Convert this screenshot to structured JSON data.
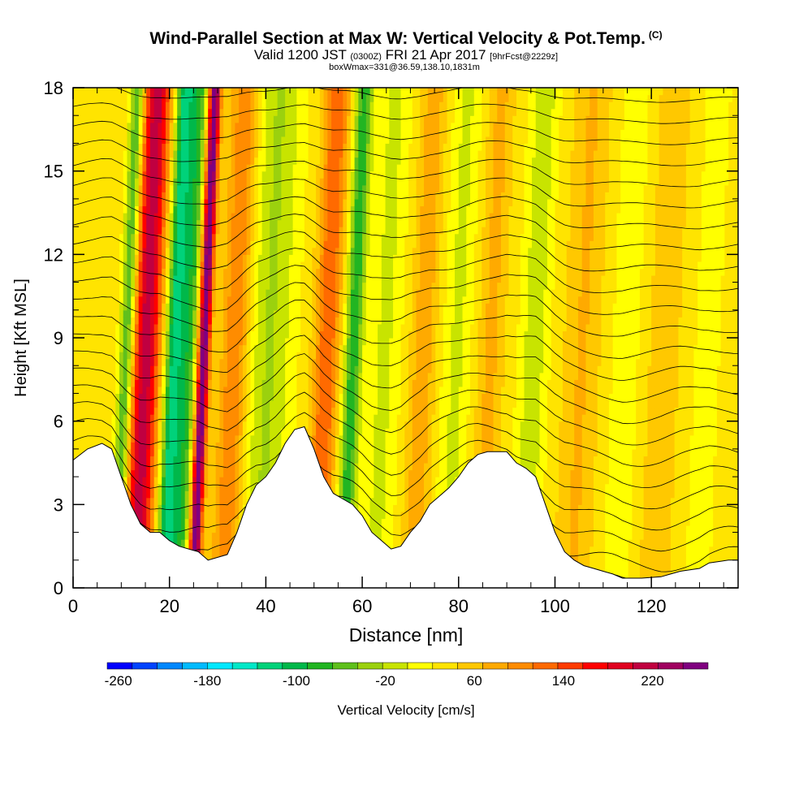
{
  "title": {
    "main": "Wind-Parallel Section at Max W: Vertical Velocity & Pot.Temp.",
    "copyright": "(C)",
    "line2_a": "Valid 1200 JST",
    "line2_b": "(0300Z)",
    "line2_c": "FRI 21 Apr 2017",
    "line2_d": "[9hrFcst@2229z]",
    "line3": "boxWmax=331@36.59,138.10,1831m"
  },
  "chart_data": {
    "type": "heatmap",
    "xlabel": "Distance [nm]",
    "ylabel": "Height [Kft MSL]",
    "xlim": [
      0,
      138
    ],
    "ylim": [
      0,
      18
    ],
    "x_ticks": [
      0,
      20,
      40,
      60,
      80,
      100,
      120
    ],
    "y_ticks": [
      0,
      3,
      6,
      9,
      12,
      15,
      18
    ],
    "colorbar": {
      "label": "Vertical Velocity [cm/s]",
      "tick_values": [
        -260,
        -180,
        -100,
        -20,
        60,
        140,
        220
      ],
      "min": -270,
      "max": 270,
      "colors": [
        "#0000ff",
        "#0044ff",
        "#0088ff",
        "#00bbff",
        "#00e8ff",
        "#00e8c8",
        "#00d27a",
        "#00b84a",
        "#22b522",
        "#5fc01c",
        "#9bd10e",
        "#c8e400",
        "#ffff00",
        "#ffe400",
        "#ffc800",
        "#ffaa00",
        "#ff8c00",
        "#ff6a00",
        "#ff3c00",
        "#ff0000",
        "#e00020",
        "#c00040",
        "#a00060",
        "#800080"
      ]
    },
    "terrain_kft": [
      [
        0,
        4.6
      ],
      [
        3,
        5
      ],
      [
        6,
        5.2
      ],
      [
        8,
        5
      ],
      [
        10,
        4
      ],
      [
        12,
        3
      ],
      [
        14,
        2.3
      ],
      [
        16,
        2
      ],
      [
        18,
        2
      ],
      [
        20,
        1.7
      ],
      [
        22,
        1.5
      ],
      [
        24,
        1.4
      ],
      [
        26,
        1.3
      ],
      [
        28,
        1
      ],
      [
        32,
        1.2
      ],
      [
        34,
        2
      ],
      [
        36,
        3
      ],
      [
        38,
        3.7
      ],
      [
        40,
        4
      ],
      [
        42,
        4.5
      ],
      [
        44,
        5.2
      ],
      [
        46,
        5.7
      ],
      [
        48,
        5.8
      ],
      [
        50,
        5
      ],
      [
        52,
        4
      ],
      [
        54,
        3.4
      ],
      [
        56,
        3.2
      ],
      [
        58,
        3
      ],
      [
        60,
        2.6
      ],
      [
        62,
        2
      ],
      [
        64,
        1.7
      ],
      [
        66,
        1.4
      ],
      [
        68,
        1.5
      ],
      [
        70,
        2
      ],
      [
        72,
        2.4
      ],
      [
        74,
        3
      ],
      [
        76,
        3.3
      ],
      [
        78,
        3.6
      ],
      [
        80,
        4
      ],
      [
        82,
        4.5
      ],
      [
        84,
        4.8
      ],
      [
        86,
        4.9
      ],
      [
        88,
        4.9
      ],
      [
        90,
        4.9
      ],
      [
        92,
        4.5
      ],
      [
        94,
        4.3
      ],
      [
        96,
        4
      ],
      [
        98,
        3
      ],
      [
        100,
        2
      ],
      [
        102,
        1.3
      ],
      [
        104,
        1
      ],
      [
        106,
        0.8
      ],
      [
        108,
        0.7
      ],
      [
        110,
        0.6
      ],
      [
        112,
        0.5
      ],
      [
        114,
        0.35
      ],
      [
        118,
        0.35
      ],
      [
        122,
        0.4
      ],
      [
        124,
        0.5
      ],
      [
        126,
        0.6
      ],
      [
        130,
        0.7
      ],
      [
        132,
        0.9
      ],
      [
        136,
        1
      ],
      [
        138,
        1
      ]
    ],
    "vertical_velocity_bands": [
      {
        "x": 14.5,
        "value": 180,
        "width": 3.0
      },
      {
        "x": 20.5,
        "value": -170,
        "width": 2.0
      },
      {
        "x": 26.5,
        "value": 240,
        "width": 1.2
      },
      {
        "x": 23.5,
        "value": -100,
        "width": 1.5
      },
      {
        "x": 10.5,
        "value": -120,
        "width": 1.5
      },
      {
        "x": 33.0,
        "value": 80,
        "width": 3.0
      },
      {
        "x": 40.0,
        "value": -60,
        "width": 5.0
      },
      {
        "x": 52.0,
        "value": 100,
        "width": 2.5
      },
      {
        "x": 57.5,
        "value": -120,
        "width": 1.8
      },
      {
        "x": 64.0,
        "value": -40,
        "width": 3.5
      },
      {
        "x": 72.0,
        "value": 50,
        "width": 2.5
      },
      {
        "x": 79.0,
        "value": -40,
        "width": 3.0
      },
      {
        "x": 86.0,
        "value": 40,
        "width": 2.5
      },
      {
        "x": 95.0,
        "value": -50,
        "width": 3.0
      },
      {
        "x": 105.0,
        "value": 35,
        "width": 3.5
      },
      {
        "x": 114.0,
        "value": -30,
        "width": 3.0
      },
      {
        "x": 122.0,
        "value": 30,
        "width": 3.0
      },
      {
        "x": 131.0,
        "value": -25,
        "width": 3.0
      }
    ],
    "theta_contour_levels": 24
  }
}
